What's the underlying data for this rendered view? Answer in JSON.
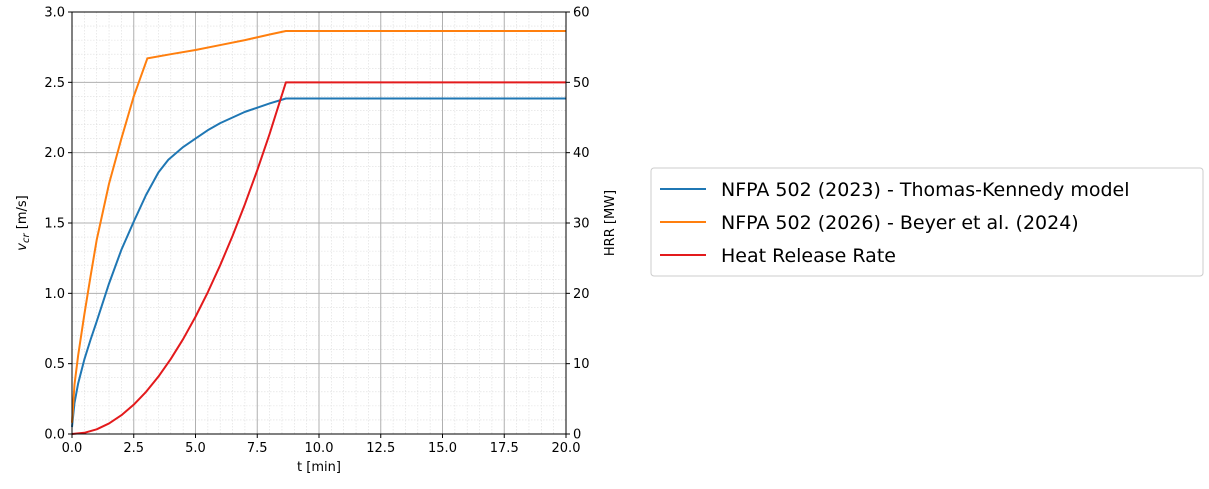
{
  "chart_data": {
    "type": "line",
    "xlabel": "t [min]",
    "ylabel_left": {
      "main": "v",
      "sub": "cr",
      "unit": " [m/s]"
    },
    "ylabel_right": "HRR [MW]",
    "xlim": [
      0,
      20
    ],
    "ylim_left": [
      0,
      3
    ],
    "ylim_right": [
      0,
      60
    ],
    "x_ticks": [
      "0.0",
      "2.5",
      "5.0",
      "7.5",
      "10.0",
      "12.5",
      "15.0",
      "17.5",
      "20.0"
    ],
    "y_left_ticks": [
      "0.0",
      "0.5",
      "1.0",
      "1.5",
      "2.0",
      "2.5",
      "3.0"
    ],
    "y_right_ticks": [
      "0",
      "10",
      "20",
      "30",
      "40",
      "50",
      "60"
    ],
    "grid": true,
    "minor_grid": true,
    "legend_position": "right-outside",
    "series": [
      {
        "name": "NFPA 502 (2023) - Thomas-Kennedy model",
        "color": "#1f77b4",
        "axis": "left",
        "x": [
          0,
          0.1,
          0.25,
          0.5,
          0.75,
          1.0,
          1.5,
          2.0,
          2.5,
          3.0,
          3.5,
          3.9,
          4.5,
          5.0,
          5.5,
          6.0,
          6.5,
          7.0,
          7.5,
          8.0,
          8.66,
          20
        ],
        "y": [
          0.05,
          0.22,
          0.36,
          0.53,
          0.67,
          0.8,
          1.07,
          1.31,
          1.51,
          1.7,
          1.86,
          1.95,
          2.04,
          2.1,
          2.16,
          2.21,
          2.25,
          2.29,
          2.32,
          2.35,
          2.385,
          2.385
        ]
      },
      {
        "name": "NFPA 502 (2026) - Beyer et al. (2024)",
        "color": "#ff7f0e",
        "axis": "left",
        "x": [
          0,
          0.1,
          0.25,
          0.5,
          0.75,
          1.0,
          1.5,
          2.0,
          2.5,
          3.05,
          4.0,
          5.0,
          6.0,
          7.0,
          8.0,
          8.66,
          20
        ],
        "y": [
          0.08,
          0.35,
          0.56,
          0.85,
          1.12,
          1.38,
          1.78,
          2.1,
          2.4,
          2.67,
          2.7,
          2.73,
          2.765,
          2.8,
          2.84,
          2.865,
          2.865
        ]
      },
      {
        "name": "Heat Release Rate",
        "color": "#e31a1c",
        "axis": "right",
        "x": [
          0,
          0.5,
          1.0,
          1.5,
          2.0,
          2.5,
          3.0,
          3.5,
          4.0,
          4.5,
          5.0,
          5.5,
          6.0,
          6.5,
          7.0,
          7.5,
          8.0,
          8.66,
          20
        ],
        "y": [
          0,
          0.17,
          0.67,
          1.5,
          2.67,
          4.17,
          6.0,
          8.17,
          10.67,
          13.5,
          16.67,
          20.17,
          24.0,
          28.17,
          32.67,
          37.5,
          42.67,
          50,
          50
        ]
      }
    ]
  }
}
